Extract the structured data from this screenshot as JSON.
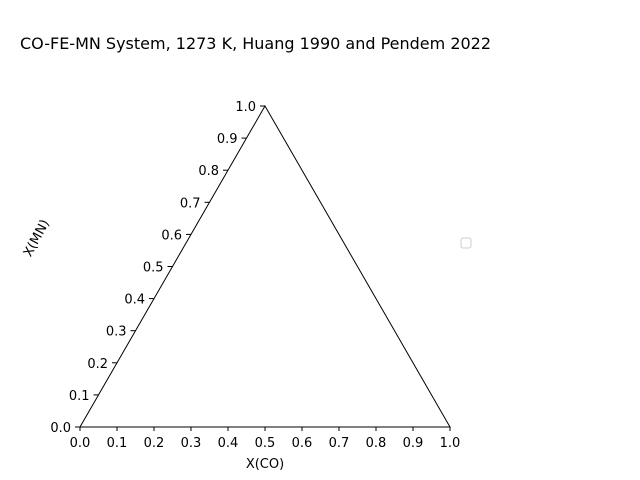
{
  "chart_data": {
    "type": "scatter",
    "projection": "ternary",
    "title": "CO-FE-MN System, 1273 K, Huang 1990 and Pendem 2022",
    "xlabel": "X(CO)",
    "ylabel": "X(MN)",
    "xlim": [
      0,
      1
    ],
    "ylim": [
      0,
      1
    ],
    "x_ticks": [
      "0.0",
      "0.1",
      "0.2",
      "0.3",
      "0.4",
      "0.5",
      "0.6",
      "0.7",
      "0.8",
      "0.9",
      "1.0"
    ],
    "y_ticks": [
      "0.0",
      "0.1",
      "0.2",
      "0.3",
      "0.4",
      "0.5",
      "0.6",
      "0.7",
      "0.8",
      "0.9",
      "1.0"
    ],
    "series": [],
    "legend": {
      "placement": "center-right",
      "entries": []
    },
    "grid": false,
    "colors": {
      "frame": "#000000",
      "text": "#000000",
      "legend_border": "#cccccc",
      "background": "#ffffff"
    }
  }
}
